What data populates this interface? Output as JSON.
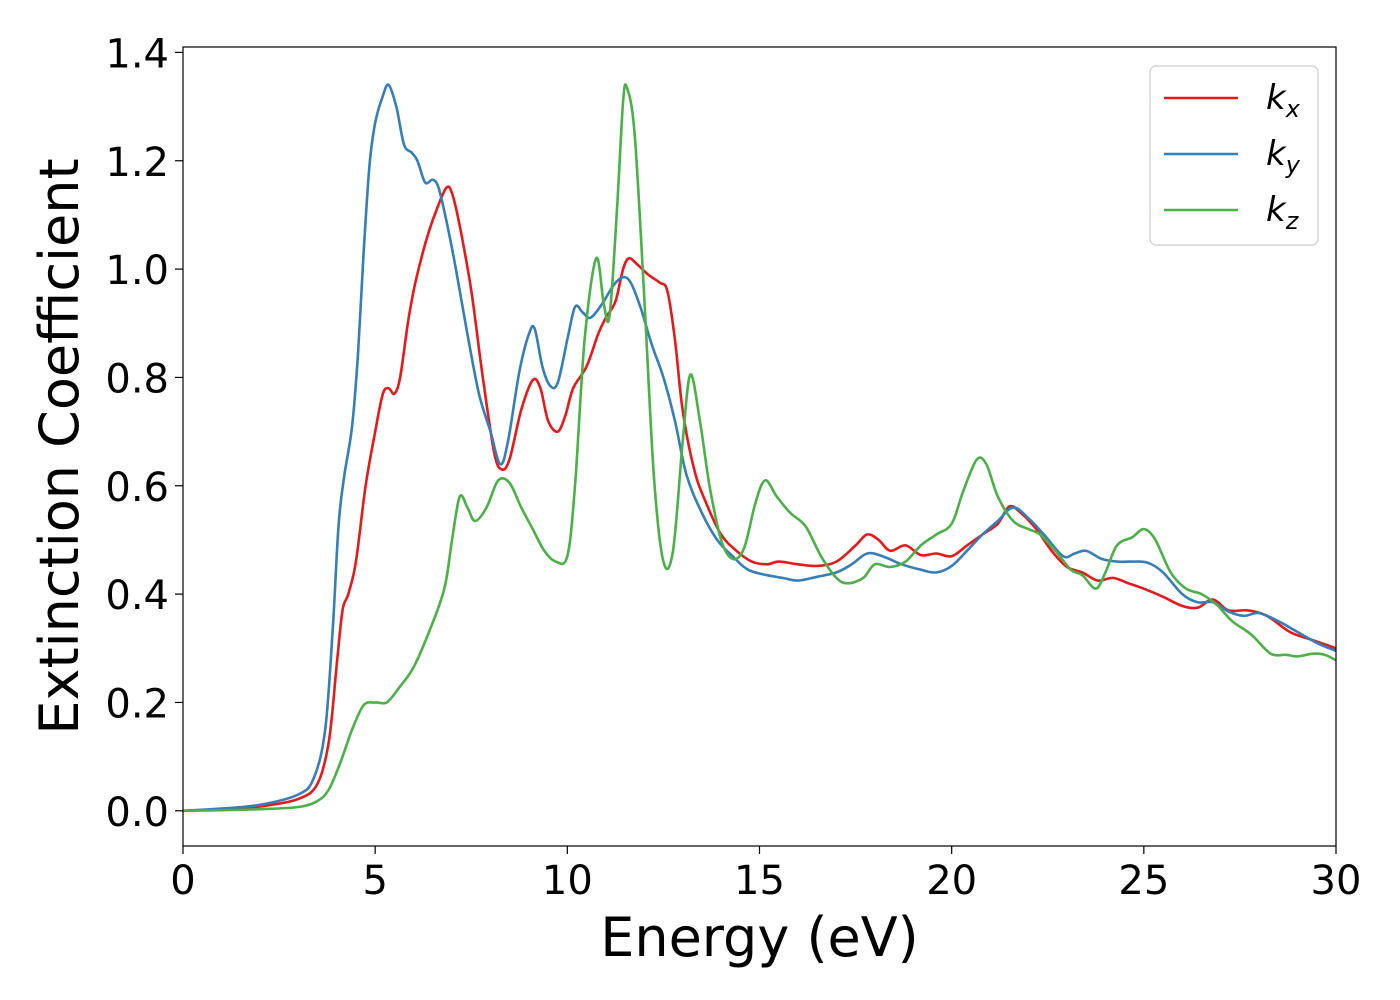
{
  "chart_data": {
    "type": "line",
    "title": "",
    "xlabel": "Energy (eV)",
    "ylabel": "Extinction Coefficient",
    "xlim": [
      0,
      30
    ],
    "ylim": [
      -0.065,
      1.41
    ],
    "xticks": [
      "0",
      "5",
      "10",
      "15",
      "20",
      "25",
      "30"
    ],
    "yticks": [
      "0.0",
      "0.2",
      "0.4",
      "0.6",
      "0.8",
      "1.0",
      "1.2",
      "1.4"
    ],
    "grid": false,
    "legend_position": "top-right",
    "series": [
      {
        "base": "k",
        "sub": "x",
        "color": "#e41a1c",
        "points": [
          [
            0,
            0
          ],
          [
            1,
            0.003
          ],
          [
            2,
            0.008
          ],
          [
            3,
            0.022
          ],
          [
            3.5,
            0.05
          ],
          [
            3.8,
            0.13
          ],
          [
            4.0,
            0.27
          ],
          [
            4.15,
            0.37
          ],
          [
            4.3,
            0.4
          ],
          [
            4.5,
            0.46
          ],
          [
            4.75,
            0.6
          ],
          [
            5.0,
            0.7
          ],
          [
            5.2,
            0.77
          ],
          [
            5.35,
            0.78
          ],
          [
            5.5,
            0.77
          ],
          [
            5.65,
            0.8
          ],
          [
            5.85,
            0.9
          ],
          [
            6.0,
            0.96
          ],
          [
            6.2,
            1.02
          ],
          [
            6.4,
            1.07
          ],
          [
            6.6,
            1.11
          ],
          [
            6.85,
            1.15
          ],
          [
            7.0,
            1.14
          ],
          [
            7.2,
            1.08
          ],
          [
            7.5,
            0.96
          ],
          [
            7.8,
            0.8
          ],
          [
            8.1,
            0.66
          ],
          [
            8.3,
            0.63
          ],
          [
            8.5,
            0.65
          ],
          [
            8.8,
            0.74
          ],
          [
            9.1,
            0.795
          ],
          [
            9.3,
            0.78
          ],
          [
            9.5,
            0.72
          ],
          [
            9.75,
            0.7
          ],
          [
            9.95,
            0.73
          ],
          [
            10.15,
            0.78
          ],
          [
            10.5,
            0.82
          ],
          [
            10.8,
            0.88
          ],
          [
            11.0,
            0.91
          ],
          [
            11.25,
            0.94
          ],
          [
            11.45,
            1.0
          ],
          [
            11.6,
            1.02
          ],
          [
            11.8,
            1.01
          ],
          [
            12.1,
            0.99
          ],
          [
            12.4,
            0.975
          ],
          [
            12.6,
            0.96
          ],
          [
            12.8,
            0.87
          ],
          [
            13.0,
            0.74
          ],
          [
            13.3,
            0.63
          ],
          [
            13.6,
            0.57
          ],
          [
            14.0,
            0.51
          ],
          [
            14.4,
            0.48
          ],
          [
            14.8,
            0.46
          ],
          [
            15.2,
            0.455
          ],
          [
            15.5,
            0.46
          ],
          [
            16.0,
            0.455
          ],
          [
            16.5,
            0.452
          ],
          [
            17.0,
            0.46
          ],
          [
            17.5,
            0.49
          ],
          [
            17.8,
            0.51
          ],
          [
            18.1,
            0.5
          ],
          [
            18.4,
            0.48
          ],
          [
            18.8,
            0.49
          ],
          [
            19.2,
            0.472
          ],
          [
            19.6,
            0.475
          ],
          [
            20.0,
            0.47
          ],
          [
            20.4,
            0.49
          ],
          [
            20.8,
            0.51
          ],
          [
            21.2,
            0.53
          ],
          [
            21.5,
            0.562
          ],
          [
            21.8,
            0.55
          ],
          [
            22.2,
            0.52
          ],
          [
            22.6,
            0.48
          ],
          [
            23.0,
            0.45
          ],
          [
            23.4,
            0.44
          ],
          [
            23.8,
            0.425
          ],
          [
            24.2,
            0.43
          ],
          [
            24.6,
            0.42
          ],
          [
            25.0,
            0.41
          ],
          [
            25.5,
            0.395
          ],
          [
            26.0,
            0.378
          ],
          [
            26.4,
            0.375
          ],
          [
            26.8,
            0.39
          ],
          [
            27.2,
            0.37
          ],
          [
            27.7,
            0.37
          ],
          [
            28.2,
            0.36
          ],
          [
            28.8,
            0.33
          ],
          [
            29.4,
            0.315
          ],
          [
            30.0,
            0.3
          ]
        ]
      },
      {
        "base": "k",
        "sub": "y",
        "color": "#377eb8",
        "points": [
          [
            0,
            0
          ],
          [
            1,
            0.004
          ],
          [
            2,
            0.011
          ],
          [
            3,
            0.03
          ],
          [
            3.4,
            0.06
          ],
          [
            3.7,
            0.15
          ],
          [
            3.9,
            0.34
          ],
          [
            4.05,
            0.53
          ],
          [
            4.2,
            0.62
          ],
          [
            4.4,
            0.71
          ],
          [
            4.55,
            0.84
          ],
          [
            4.7,
            1.03
          ],
          [
            4.85,
            1.19
          ],
          [
            5.0,
            1.27
          ],
          [
            5.2,
            1.32
          ],
          [
            5.35,
            1.34
          ],
          [
            5.55,
            1.3
          ],
          [
            5.75,
            1.23
          ],
          [
            5.95,
            1.215
          ],
          [
            6.1,
            1.2
          ],
          [
            6.3,
            1.16
          ],
          [
            6.5,
            1.165
          ],
          [
            6.65,
            1.15
          ],
          [
            6.85,
            1.09
          ],
          [
            7.1,
            1.0
          ],
          [
            7.4,
            0.88
          ],
          [
            7.7,
            0.77
          ],
          [
            8.0,
            0.7
          ],
          [
            8.25,
            0.64
          ],
          [
            8.45,
            0.68
          ],
          [
            8.75,
            0.81
          ],
          [
            9.0,
            0.88
          ],
          [
            9.15,
            0.89
          ],
          [
            9.35,
            0.82
          ],
          [
            9.55,
            0.785
          ],
          [
            9.75,
            0.79
          ],
          [
            10.0,
            0.87
          ],
          [
            10.2,
            0.93
          ],
          [
            10.4,
            0.92
          ],
          [
            10.6,
            0.91
          ],
          [
            10.9,
            0.935
          ],
          [
            11.2,
            0.97
          ],
          [
            11.45,
            0.985
          ],
          [
            11.65,
            0.975
          ],
          [
            11.9,
            0.93
          ],
          [
            12.2,
            0.86
          ],
          [
            12.5,
            0.8
          ],
          [
            12.8,
            0.72
          ],
          [
            13.1,
            0.62
          ],
          [
            13.5,
            0.55
          ],
          [
            13.9,
            0.5
          ],
          [
            14.3,
            0.47
          ],
          [
            14.7,
            0.445
          ],
          [
            15.2,
            0.435
          ],
          [
            15.6,
            0.43
          ],
          [
            16.0,
            0.425
          ],
          [
            16.5,
            0.432
          ],
          [
            17.0,
            0.44
          ],
          [
            17.4,
            0.455
          ],
          [
            17.8,
            0.475
          ],
          [
            18.2,
            0.47
          ],
          [
            18.7,
            0.455
          ],
          [
            19.2,
            0.445
          ],
          [
            19.6,
            0.44
          ],
          [
            20.0,
            0.452
          ],
          [
            20.4,
            0.48
          ],
          [
            20.8,
            0.51
          ],
          [
            21.2,
            0.535
          ],
          [
            21.6,
            0.56
          ],
          [
            22.0,
            0.54
          ],
          [
            22.4,
            0.51
          ],
          [
            22.9,
            0.47
          ],
          [
            23.2,
            0.475
          ],
          [
            23.5,
            0.48
          ],
          [
            23.9,
            0.465
          ],
          [
            24.3,
            0.46
          ],
          [
            24.7,
            0.46
          ],
          [
            25.1,
            0.458
          ],
          [
            25.5,
            0.44
          ],
          [
            26.0,
            0.4
          ],
          [
            26.4,
            0.385
          ],
          [
            26.8,
            0.385
          ],
          [
            27.2,
            0.368
          ],
          [
            27.6,
            0.36
          ],
          [
            28.0,
            0.365
          ],
          [
            28.5,
            0.35
          ],
          [
            29.0,
            0.33
          ],
          [
            29.5,
            0.31
          ],
          [
            30.0,
            0.295
          ]
        ]
      },
      {
        "base": "k",
        "sub": "z",
        "color": "#4daf4a",
        "points": [
          [
            0,
            0
          ],
          [
            1,
            0.001
          ],
          [
            2,
            0.003
          ],
          [
            3,
            0.007
          ],
          [
            3.5,
            0.018
          ],
          [
            3.8,
            0.04
          ],
          [
            4.1,
            0.09
          ],
          [
            4.4,
            0.15
          ],
          [
            4.7,
            0.195
          ],
          [
            5.0,
            0.2
          ],
          [
            5.3,
            0.2
          ],
          [
            5.6,
            0.225
          ],
          [
            6.0,
            0.265
          ],
          [
            6.4,
            0.33
          ],
          [
            6.8,
            0.41
          ],
          [
            7.0,
            0.5
          ],
          [
            7.2,
            0.58
          ],
          [
            7.4,
            0.56
          ],
          [
            7.6,
            0.535
          ],
          [
            7.9,
            0.56
          ],
          [
            8.2,
            0.61
          ],
          [
            8.5,
            0.605
          ],
          [
            8.8,
            0.56
          ],
          [
            9.1,
            0.52
          ],
          [
            9.4,
            0.48
          ],
          [
            9.7,
            0.46
          ],
          [
            10.0,
            0.47
          ],
          [
            10.2,
            0.6
          ],
          [
            10.45,
            0.87
          ],
          [
            10.75,
            1.02
          ],
          [
            10.95,
            0.935
          ],
          [
            11.1,
            0.915
          ],
          [
            11.3,
            1.12
          ],
          [
            11.45,
            1.31
          ],
          [
            11.55,
            1.335
          ],
          [
            11.75,
            1.25
          ],
          [
            12.0,
            0.95
          ],
          [
            12.25,
            0.62
          ],
          [
            12.5,
            0.46
          ],
          [
            12.75,
            0.48
          ],
          [
            13.0,
            0.68
          ],
          [
            13.2,
            0.805
          ],
          [
            13.45,
            0.72
          ],
          [
            13.7,
            0.6
          ],
          [
            14.0,
            0.5
          ],
          [
            14.3,
            0.465
          ],
          [
            14.6,
            0.485
          ],
          [
            14.9,
            0.57
          ],
          [
            15.15,
            0.61
          ],
          [
            15.45,
            0.58
          ],
          [
            15.8,
            0.55
          ],
          [
            16.2,
            0.525
          ],
          [
            16.6,
            0.47
          ],
          [
            17.0,
            0.43
          ],
          [
            17.3,
            0.42
          ],
          [
            17.7,
            0.43
          ],
          [
            18.0,
            0.455
          ],
          [
            18.4,
            0.45
          ],
          [
            18.8,
            0.46
          ],
          [
            19.2,
            0.49
          ],
          [
            19.6,
            0.51
          ],
          [
            20.0,
            0.53
          ],
          [
            20.3,
            0.59
          ],
          [
            20.65,
            0.648
          ],
          [
            20.9,
            0.64
          ],
          [
            21.2,
            0.58
          ],
          [
            21.6,
            0.535
          ],
          [
            22.0,
            0.52
          ],
          [
            22.3,
            0.51
          ],
          [
            22.7,
            0.48
          ],
          [
            23.1,
            0.445
          ],
          [
            23.4,
            0.435
          ],
          [
            23.75,
            0.41
          ],
          [
            24.0,
            0.44
          ],
          [
            24.3,
            0.49
          ],
          [
            24.7,
            0.505
          ],
          [
            25.0,
            0.52
          ],
          [
            25.3,
            0.5
          ],
          [
            25.7,
            0.44
          ],
          [
            26.1,
            0.41
          ],
          [
            26.5,
            0.4
          ],
          [
            26.9,
            0.38
          ],
          [
            27.3,
            0.35
          ],
          [
            27.8,
            0.325
          ],
          [
            28.3,
            0.29
          ],
          [
            28.7,
            0.288
          ],
          [
            29.0,
            0.285
          ],
          [
            29.4,
            0.29
          ],
          [
            29.7,
            0.288
          ],
          [
            30.0,
            0.278
          ]
        ]
      }
    ]
  }
}
